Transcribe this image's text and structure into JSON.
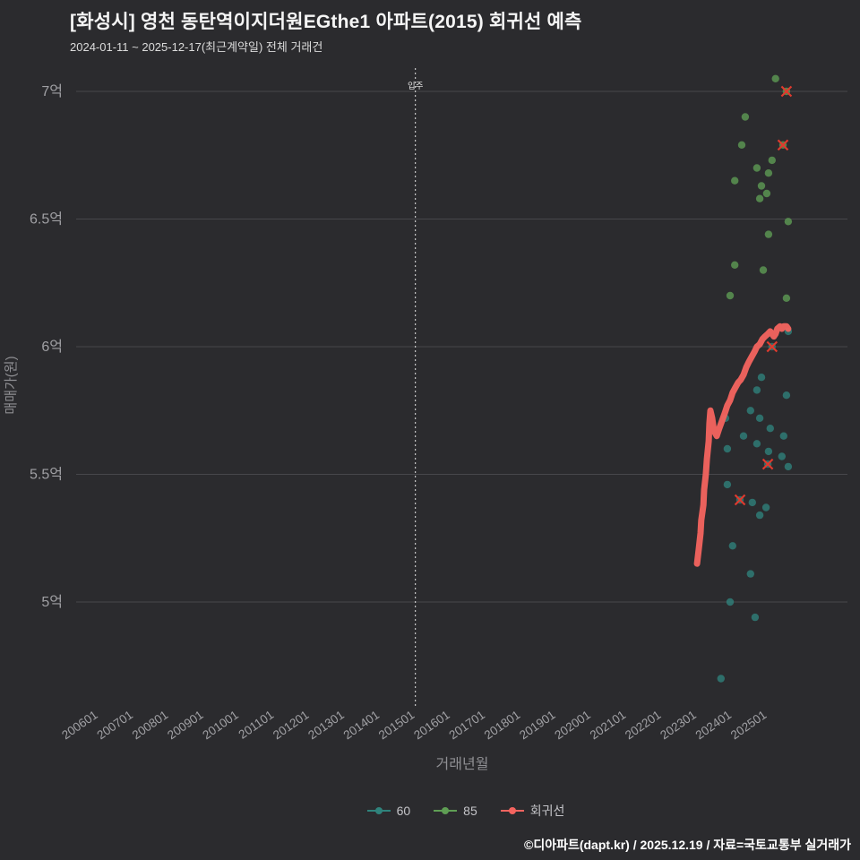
{
  "title": "[화성시] 영천 동탄역이지더원EGthe1 아파트(2015) 회귀선 예측",
  "subtitle": "2024-01-11 ~ 2025-12-17(최근계약일) 전체 거래건",
  "footer": "©디아파트(dapt.kr) / 2025.12.19 / 자료=국토교통부 실거래가",
  "colors": {
    "background": "#2b2b2e",
    "grid": "#47474b",
    "tick_text": "#a0a0a4",
    "axis_title": "#8f8f93",
    "title_text": "#f5f5f5",
    "subtitle_text": "#dcdcdc",
    "series_60": "#2f837c",
    "series_85": "#5f9e54",
    "regression": "#f4645f",
    "highlight": "#e03a2e",
    "annotation_line": "#e6e6e6"
  },
  "legend": {
    "items": [
      {
        "label": "60",
        "color_key": "series_60"
      },
      {
        "label": "85",
        "color_key": "series_85"
      },
      {
        "label": "회귀선",
        "color_key": "regression"
      }
    ]
  },
  "chart_data": {
    "type": "scatter",
    "title": "[화성시] 영천 동탄역이지더원EGthe1 아파트(2015) 회귀선 예측",
    "subtitle": "2024-01-11 ~ 2025-12-17(최근계약일) 전체 거래건",
    "xlabel": "거래년월",
    "ylabel": "매매가(원)",
    "grid": "horizontal-only",
    "legend_position": "bottom",
    "xlim": [
      2005.4,
      2027.3
    ],
    "ylim": [
      4.59,
      7.09
    ],
    "x_ticks": [
      "200601",
      "200701",
      "200801",
      "200901",
      "201001",
      "201101",
      "201201",
      "201301",
      "201401",
      "201501",
      "201601",
      "201701",
      "201801",
      "201901",
      "202001",
      "202101",
      "202201",
      "202301",
      "202401",
      "202501"
    ],
    "y_ticks": [
      {
        "label": "7억",
        "value": 7.0
      },
      {
        "label": "6.5억",
        "value": 6.5
      },
      {
        "label": "6억",
        "value": 6.0
      },
      {
        "label": "5.5억",
        "value": 5.5
      },
      {
        "label": "5억",
        "value": 5.0
      }
    ],
    "y_unit": "억",
    "annotation": {
      "label": "입주",
      "x": "201501"
    },
    "series": [
      {
        "name": "60",
        "color_key": "series_60",
        "points": [
          [
            2025.59,
            6.06
          ],
          [
            2025.13,
            6.0
          ],
          [
            2024.83,
            5.88
          ],
          [
            2024.7,
            5.83
          ],
          [
            2025.54,
            5.81
          ],
          [
            2024.52,
            5.75
          ],
          [
            2023.81,
            5.72
          ],
          [
            2024.78,
            5.72
          ],
          [
            2025.08,
            5.68
          ],
          [
            2024.32,
            5.65
          ],
          [
            2025.46,
            5.65
          ],
          [
            2024.7,
            5.62
          ],
          [
            2023.86,
            5.6
          ],
          [
            2025.03,
            5.59
          ],
          [
            2025.41,
            5.57
          ],
          [
            2025.01,
            5.54
          ],
          [
            2025.59,
            5.53
          ],
          [
            2023.86,
            5.46
          ],
          [
            2024.22,
            5.4
          ],
          [
            2024.57,
            5.39
          ],
          [
            2024.96,
            5.37
          ],
          [
            2024.78,
            5.34
          ],
          [
            2024.01,
            5.22
          ],
          [
            2024.52,
            5.11
          ],
          [
            2023.94,
            5.0
          ],
          [
            2024.65,
            4.94
          ],
          [
            2023.68,
            4.7
          ]
        ]
      },
      {
        "name": "85",
        "color_key": "series_85",
        "points": [
          [
            2025.23,
            7.05
          ],
          [
            2025.54,
            7.0
          ],
          [
            2024.37,
            6.9
          ],
          [
            2024.27,
            6.79
          ],
          [
            2025.44,
            6.79
          ],
          [
            2024.7,
            6.7
          ],
          [
            2025.13,
            6.73
          ],
          [
            2025.03,
            6.68
          ],
          [
            2024.07,
            6.65
          ],
          [
            2024.83,
            6.63
          ],
          [
            2024.98,
            6.6
          ],
          [
            2024.78,
            6.58
          ],
          [
            2025.59,
            6.49
          ],
          [
            2025.03,
            6.44
          ],
          [
            2024.07,
            6.32
          ],
          [
            2024.88,
            6.3
          ],
          [
            2023.94,
            6.2
          ],
          [
            2025.54,
            6.19
          ]
        ]
      }
    ],
    "regression": {
      "name": "회귀선",
      "color_key": "regression",
      "points": [
        [
          2023.0,
          5.15
        ],
        [
          2023.05,
          5.21
        ],
        [
          2023.1,
          5.27
        ],
        [
          2023.12,
          5.32
        ],
        [
          2023.18,
          5.38
        ],
        [
          2023.2,
          5.44
        ],
        [
          2023.25,
          5.5
        ],
        [
          2023.28,
          5.56
        ],
        [
          2023.33,
          5.63
        ],
        [
          2023.35,
          5.7
        ],
        [
          2023.38,
          5.75
        ],
        [
          2023.43,
          5.72
        ],
        [
          2023.48,
          5.67
        ],
        [
          2023.56,
          5.65
        ],
        [
          2023.63,
          5.68
        ],
        [
          2023.71,
          5.71
        ],
        [
          2023.79,
          5.74
        ],
        [
          2023.86,
          5.77
        ],
        [
          2023.94,
          5.79
        ],
        [
          2024.01,
          5.82
        ],
        [
          2024.09,
          5.84
        ],
        [
          2024.17,
          5.86
        ],
        [
          2024.24,
          5.87
        ],
        [
          2024.32,
          5.89
        ],
        [
          2024.4,
          5.92
        ],
        [
          2024.47,
          5.94
        ],
        [
          2024.55,
          5.96
        ],
        [
          2024.63,
          5.98
        ],
        [
          2024.7,
          6.0
        ],
        [
          2024.78,
          6.01
        ],
        [
          2024.86,
          6.03
        ],
        [
          2024.93,
          6.04
        ],
        [
          2025.01,
          6.05
        ],
        [
          2025.08,
          6.06
        ],
        [
          2025.13,
          6.05
        ],
        [
          2025.18,
          6.04
        ],
        [
          2025.23,
          6.05
        ],
        [
          2025.28,
          6.07
        ],
        [
          2025.36,
          6.08
        ],
        [
          2025.41,
          6.07
        ],
        [
          2025.46,
          6.08
        ],
        [
          2025.54,
          6.08
        ],
        [
          2025.59,
          6.07
        ]
      ]
    },
    "highlights": [
      [
        2025.54,
        7.0
      ],
      [
        2025.44,
        6.79
      ],
      [
        2025.13,
        6.0
      ],
      [
        2025.01,
        5.54
      ],
      [
        2024.22,
        5.4
      ]
    ]
  }
}
